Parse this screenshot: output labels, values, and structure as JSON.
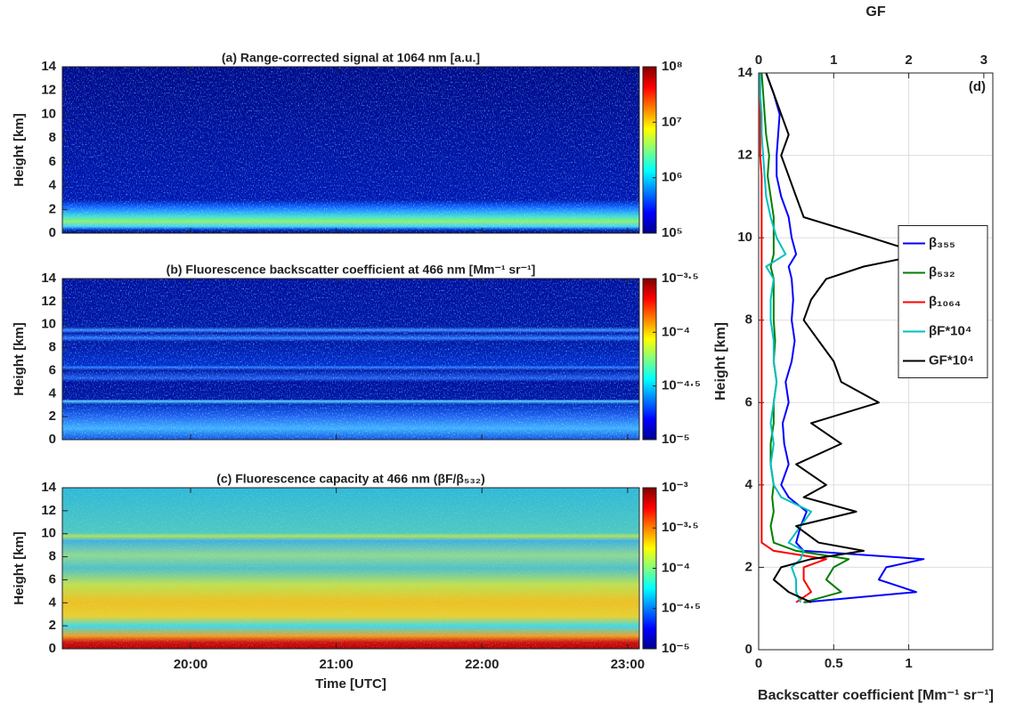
{
  "chart_data": [
    {
      "type": "heatmap",
      "title": "(a) Range-corrected signal at 1064 nm [a.u.]",
      "ylabel": "Height [km]",
      "ylim": [
        0,
        14
      ],
      "yticks": [
        0,
        2,
        4,
        6,
        8,
        10,
        12,
        14
      ],
      "log": true,
      "colormap": "jet",
      "clim": [
        100000,
        100000000
      ],
      "cticks": [
        {
          "value": 100000,
          "label": "10⁵"
        },
        {
          "value": 1000000,
          "label": "10⁶"
        },
        {
          "value": 10000000,
          "label": "10⁷"
        },
        {
          "value": 100000000,
          "label": "10⁸"
        }
      ]
    },
    {
      "type": "heatmap",
      "title": "(b) Fluorescence backscatter coefficient at 466 nm [Mm⁻¹ sr⁻¹]",
      "ylabel": "Height [km]",
      "ylim": [
        0,
        14
      ],
      "yticks": [
        0,
        2,
        4,
        6,
        8,
        10,
        12,
        14
      ],
      "log": true,
      "colormap": "jet",
      "clim": [
        1e-05,
        0.00031623
      ],
      "cticks": [
        {
          "value": 1e-05,
          "label": "10⁻⁵"
        },
        {
          "value": 3.1623e-05,
          "label": "10⁻⁴·⁵"
        },
        {
          "value": 0.0001,
          "label": "10⁻⁴"
        },
        {
          "value": 0.00031623,
          "label": "10⁻³·⁵"
        }
      ]
    },
    {
      "type": "heatmap",
      "title": "(c) Fluorescence capacity at 466 nm (βF/β₅₃₂)",
      "ylabel": "Height [km]",
      "xlabel": "Time [UTC]",
      "ylim": [
        0,
        14
      ],
      "yticks": [
        0,
        2,
        4,
        6,
        8,
        10,
        12,
        14
      ],
      "log": true,
      "colormap": "jet",
      "xlim": [
        19.12,
        23.08
      ],
      "xticks": [
        {
          "value": 20,
          "label": "20:00"
        },
        {
          "value": 21,
          "label": "21:00"
        },
        {
          "value": 22,
          "label": "22:00"
        },
        {
          "value": 23,
          "label": "23:00"
        }
      ],
      "clim": [
        1e-05,
        0.001
      ],
      "cticks": [
        {
          "value": 1e-05,
          "label": "10⁻⁵"
        },
        {
          "value": 3.1623e-05,
          "label": "10⁻⁴·⁵"
        },
        {
          "value": 0.0001,
          "label": "10⁻⁴"
        },
        {
          "value": 0.00031623,
          "label": "10⁻³·⁵"
        },
        {
          "value": 0.001,
          "label": "10⁻³"
        }
      ]
    },
    {
      "type": "line",
      "annotation": "(d)",
      "xlabel": "Backscatter coefficient [Mm⁻¹ sr⁻¹]",
      "x2label": "GF",
      "ylabel": "Height [km]",
      "xlim": [
        0,
        1.56
      ],
      "xticks": [
        0,
        0.5,
        1
      ],
      "x2lim": [
        0,
        3.12
      ],
      "x2ticks": [
        0,
        1,
        2,
        3
      ],
      "ylim": [
        0,
        14
      ],
      "yticks": [
        0,
        2,
        4,
        6,
        8,
        10,
        12,
        14
      ],
      "grid": true,
      "legend": "center right",
      "y": [
        1.15,
        1.4,
        1.7,
        2.0,
        2.2,
        2.4,
        2.6,
        3,
        3.35,
        3.7,
        4,
        4.5,
        5,
        5.5,
        6,
        6.5,
        7,
        7.5,
        8,
        8.5,
        9,
        9.3,
        9.6,
        10,
        10.5,
        11,
        11.5,
        12,
        12.5,
        13,
        13.5,
        14
      ],
      "series": [
        {
          "name": "β₃₅₅",
          "color": "#0000ff",
          "values": [
            0.3,
            1.05,
            0.8,
            0.85,
            1.1,
            0.3,
            0.25,
            0.28,
            0.32,
            0.2,
            0.15,
            0.2,
            0.17,
            0.16,
            0.2,
            0.18,
            0.22,
            0.24,
            0.22,
            0.23,
            0.22,
            0.2,
            0.25,
            0.22,
            0.2,
            0.15,
            0.12,
            0.12,
            0.13,
            0.14,
            0.1,
            0.05
          ]
        },
        {
          "name": "β₅₃₂",
          "color": "#007f00",
          "values": [
            0.3,
            0.55,
            0.45,
            0.5,
            0.6,
            0.25,
            0.1,
            0.08,
            0.1,
            0.09,
            0.1,
            0.08,
            0.08,
            0.1,
            0.1,
            0.12,
            0.1,
            0.11,
            0.1,
            0.1,
            0.1,
            0.08,
            0.1,
            0.1,
            0.1,
            0.08,
            0.06,
            0.07,
            0.05,
            0.04,
            0.03,
            0.02
          ]
        },
        {
          "name": "β₁₀₆₄",
          "color": "#ff0000",
          "values": [
            0.25,
            0.35,
            0.3,
            0.3,
            0.45,
            0.1,
            0.02,
            0.02,
            0.02,
            0.02,
            0.02,
            0.02,
            0.02,
            0.02,
            0.02,
            0.02,
            0.02,
            0.02,
            0.02,
            0.02,
            0.02,
            0.02,
            0.02,
            0.02,
            0.02,
            0.02,
            0.02,
            0.01,
            0.01,
            0.01,
            0.01,
            0.01
          ]
        },
        {
          "name": "βF*10⁴",
          "color": "#00bfbf",
          "values": [
            0.28,
            0.25,
            0.25,
            0.22,
            0.28,
            0.3,
            0.2,
            0.28,
            0.35,
            0.15,
            0.1,
            0.08,
            0.1,
            0.08,
            0.1,
            0.12,
            0.1,
            0.1,
            0.08,
            0.08,
            0.1,
            0.05,
            0.18,
            0.12,
            0.08,
            0.05,
            0.04,
            0.03,
            0.02,
            0.02,
            0.01,
            0.01
          ]
        },
        {
          "name": "GF*10⁴",
          "color": "#000000",
          "axis": "x2",
          "values": [
            0.7,
            0.4,
            0.2,
            0.3,
            0.7,
            1.4,
            0.8,
            0.5,
            1.3,
            0.6,
            0.9,
            0.5,
            1.1,
            0.7,
            1.6,
            1.1,
            1.0,
            0.8,
            0.6,
            0.7,
            0.9,
            1.4,
            2.2,
            1.5,
            0.6,
            0.5,
            0.4,
            0.3,
            0.4,
            0.3,
            0.2,
            0.1
          ]
        }
      ]
    }
  ]
}
